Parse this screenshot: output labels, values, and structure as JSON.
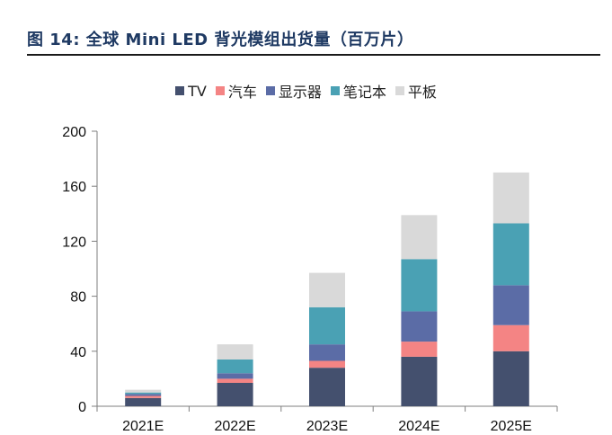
{
  "figure": {
    "title": "图 14: 全球 Mini LED 背光模组出货量（百万片）"
  },
  "chart_data": {
    "type": "bar",
    "stacked": true,
    "title": "图 14: 全球 Mini LED 背光模组出货量（百万片）",
    "xlabel": "",
    "ylabel": "",
    "ylim": [
      0,
      200
    ],
    "yticks": [
      0,
      40,
      80,
      120,
      160,
      200
    ],
    "grid": false,
    "legend_position": "top",
    "categories": [
      "2021E",
      "2022E",
      "2023E",
      "2024E",
      "2025E"
    ],
    "series": [
      {
        "name": "TV",
        "color": "#44506e",
        "values": [
          6,
          17,
          28,
          36,
          40
        ]
      },
      {
        "name": "汽车",
        "color": "#f48484",
        "values": [
          1.5,
          3,
          5,
          11,
          19
        ]
      },
      {
        "name": "显示器",
        "color": "#5b6ca6",
        "values": [
          1.5,
          4,
          12,
          22,
          29
        ]
      },
      {
        "name": "笔记本",
        "color": "#4aa1b4",
        "values": [
          1,
          10,
          27,
          38,
          45
        ]
      },
      {
        "name": "平板",
        "color": "#d9d9d9",
        "values": [
          2,
          11,
          25,
          32,
          37
        ]
      }
    ]
  }
}
